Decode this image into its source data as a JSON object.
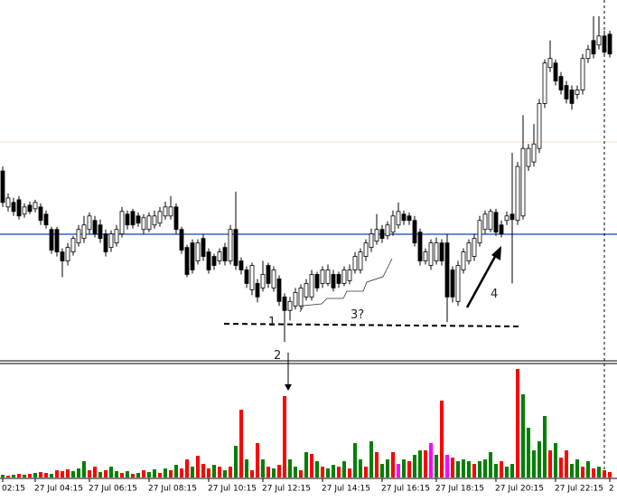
{
  "chart_data": [
    {
      "type": "candlestick",
      "categories": [
        "02:15",
        null,
        null,
        null,
        null,
        null,
        "27 Jul 04:15",
        null,
        null,
        null,
        null,
        null,
        null,
        null,
        null,
        null,
        "27 Jul 06:15",
        null,
        null,
        null,
        null,
        null,
        null,
        null,
        null,
        null,
        null,
        "27 Jul 08:15",
        null,
        null,
        null,
        null,
        null,
        null,
        null,
        null,
        null,
        null,
        "27 Jul 10:15",
        null,
        null,
        null,
        null,
        null,
        null,
        null,
        null,
        null,
        "27 Jul 12:15",
        null,
        null,
        null,
        null,
        null,
        null,
        null,
        null,
        null,
        null,
        "27 Jul 14:15",
        null,
        null,
        null,
        null,
        null,
        null,
        null,
        null,
        null,
        null,
        "27 Jul 16:15",
        null,
        null,
        null,
        null,
        null,
        null,
        null,
        null,
        null,
        "27 Jul 18:15",
        null,
        null,
        null,
        null,
        null,
        null,
        null,
        null,
        null,
        null,
        "27 Jul 20:15",
        null,
        null,
        null,
        null,
        null,
        null,
        null,
        null,
        null,
        null,
        "27 Jul 22:15",
        null,
        null,
        null,
        null,
        null,
        null,
        null,
        null,
        null,
        "2"
      ],
      "open": [
        210,
        170,
        175,
        178,
        162,
        172,
        168,
        170,
        162,
        145,
        145,
        120,
        110,
        120,
        130,
        135,
        145,
        155,
        150,
        140,
        125,
        130,
        140,
        162,
        165,
        160,
        145,
        145,
        150,
        152,
        160,
        160,
        170,
        145,
        125,
        130,
        110,
        135,
        120,
        115,
        110,
        125,
        110,
        145,
        110,
        100,
        78,
        85,
        80,
        105,
        80,
        90,
        70,
        55,
        60,
        60,
        70,
        70,
        95,
        85,
        85,
        95,
        95,
        85,
        88,
        100,
        100,
        115,
        125,
        132,
        145,
        138,
        142,
        150,
        162,
        160,
        155,
        142,
        110,
        105,
        110,
        130,
        130,
        100,
        65,
        100,
        110,
        115,
        130,
        145,
        145,
        164,
        150,
        155,
        162,
        155,
        160,
        215,
        220,
        235,
        285,
        325,
        330,
        315,
        305,
        300,
        295,
        300,
        335,
        355,
        350,
        360,
        362
      ],
      "high": [
        215,
        185,
        180,
        182,
        174,
        176,
        178,
        174,
        166,
        148,
        148,
        124,
        130,
        138,
        150,
        160,
        164,
        160,
        156,
        145,
        144,
        150,
        170,
        166,
        168,
        164,
        162,
        164,
        166,
        170,
        176,
        182,
        174,
        148,
        128,
        134,
        134,
        140,
        124,
        118,
        124,
        130,
        150,
        187,
        114,
        104,
        108,
        90,
        110,
        108,
        104,
        94,
        74,
        70,
        80,
        84,
        90,
        100,
        98,
        104,
        106,
        100,
        98,
        104,
        106,
        120,
        124,
        134,
        146,
        162,
        150,
        154,
        166,
        175,
        166,
        164,
        160,
        146,
        124,
        134,
        136,
        134,
        140,
        104,
        110,
        124,
        134,
        140,
        160,
        166,
        168,
        168,
        155,
        165,
        230,
        220,
        272,
        240,
        262,
        290,
        334,
        355,
        334,
        320,
        310,
        305,
        305,
        340,
        350,
        382,
        382,
        366,
        366
      ],
      "low": [
        170,
        165,
        160,
        156,
        158,
        162,
        164,
        150,
        146,
        118,
        115,
        92,
        105,
        116,
        126,
        130,
        140,
        136,
        130,
        115,
        120,
        126,
        136,
        145,
        146,
        148,
        140,
        142,
        146,
        148,
        156,
        156,
        140,
        118,
        92,
        96,
        106,
        110,
        96,
        100,
        106,
        105,
        106,
        100,
        95,
        80,
        72,
        64,
        76,
        80,
        76,
        60,
        20,
        44,
        56,
        56,
        66,
        66,
        76,
        80,
        82,
        76,
        80,
        82,
        84,
        96,
        96,
        110,
        120,
        128,
        130,
        134,
        138,
        146,
        150,
        150,
        126,
        105,
        106,
        100,
        106,
        105,
        42,
        64,
        60,
        96,
        106,
        110,
        126,
        140,
        142,
        138,
        136,
        150,
        85,
        150,
        156,
        210,
        215,
        230,
        280,
        320,
        305,
        295,
        285,
        278,
        290,
        295,
        330,
        335,
        345,
        338,
        336
      ],
      "close": [
        175,
        180,
        165,
        160,
        170,
        165,
        175,
        155,
        150,
        122,
        120,
        110,
        125,
        135,
        145,
        150,
        160,
        140,
        135,
        120,
        140,
        145,
        165,
        150,
        150,
        152,
        158,
        160,
        160,
        165,
        170,
        170,
        145,
        122,
        95,
        100,
        130,
        115,
        100,
        105,
        120,
        110,
        145,
        105,
        100,
        85,
        105,
        70,
        95,
        85,
        100,
        65,
        55,
        65,
        75,
        80,
        85,
        95,
        80,
        100,
        100,
        80,
        85,
        100,
        100,
        115,
        120,
        130,
        140,
        145,
        135,
        150,
        160,
        165,
        155,
        155,
        130,
        110,
        120,
        130,
        130,
        110,
        70,
        70,
        105,
        120,
        130,
        135,
        155,
        162,
        165,
        142,
        140,
        160,
        156,
        215,
        235,
        235,
        240,
        285,
        330,
        335,
        310,
        300,
        290,
        285,
        300,
        335,
        345,
        340,
        360,
        342,
        340
      ],
      "ylim": [
        0,
        400
      ],
      "annotations": [
        "1",
        "2",
        "3?",
        "4"
      ]
    },
    {
      "type": "bar",
      "values": [
        3,
        2,
        3,
        4,
        3,
        4,
        5,
        6,
        5,
        4,
        8,
        7,
        9,
        7,
        10,
        18,
        8,
        12,
        6,
        8,
        12,
        7,
        5,
        7,
        4,
        5,
        8,
        6,
        9,
        5,
        10,
        8,
        14,
        10,
        20,
        12,
        24,
        15,
        10,
        14,
        12,
        8,
        12,
        35,
        75,
        20,
        8,
        38,
        20,
        12,
        10,
        14,
        90,
        20,
        12,
        8,
        28,
        26,
        18,
        12,
        10,
        14,
        12,
        18,
        10,
        38,
        20,
        12,
        40,
        28,
        15,
        20,
        28,
        15,
        20,
        18,
        25,
        30,
        30,
        38,
        25,
        85,
        25,
        22,
        18,
        20,
        18,
        15,
        18,
        20,
        28,
        15,
        18,
        12,
        15,
        120,
        92,
        55,
        30,
        40,
        68,
        30,
        38,
        22,
        30,
        15,
        20,
        12,
        18,
        10,
        12,
        8,
        6
      ],
      "colors": [
        "green",
        "red",
        "green",
        "red",
        "green",
        "red",
        "green",
        "red",
        "red",
        "green",
        "red",
        "red",
        "red",
        "green",
        "green",
        "green",
        "red",
        "red",
        "green",
        "red",
        "green",
        "green",
        "red",
        "green",
        "red",
        "green",
        "red",
        "green",
        "green",
        "red",
        "green",
        "red",
        "green",
        "red",
        "red",
        "green",
        "red",
        "red",
        "red",
        "green",
        "red",
        "green",
        "red",
        "green",
        "red",
        "green",
        "red",
        "red",
        "green",
        "red",
        "green",
        "red",
        "red",
        "green",
        "green",
        "red",
        "green",
        "red",
        "green",
        "red",
        "green",
        "green",
        "red",
        "green",
        "red",
        "green",
        "green",
        "red",
        "green",
        "red",
        "green",
        "green",
        "red",
        "magenta",
        "green",
        "red",
        "green",
        "green",
        "red",
        "magenta",
        "green",
        "red",
        "magenta",
        "red",
        "green",
        "green",
        "green",
        "red",
        "green",
        "green",
        "green",
        "green",
        "red",
        "green",
        "green",
        "red",
        "green",
        "green",
        "green",
        "green",
        "green",
        "red",
        "green",
        "red",
        "red",
        "green",
        "green",
        "red",
        "green",
        "red",
        "green",
        "red",
        "red"
      ],
      "ylim": [
        0,
        125
      ]
    }
  ]
}
